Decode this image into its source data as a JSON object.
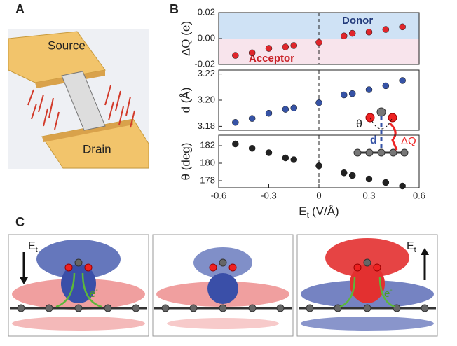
{
  "chart_data": [
    {
      "type": "scatter",
      "ylabel": "ΔQ (e)",
      "color": "#e0262b",
      "x": [
        -0.5,
        -0.4,
        -0.3,
        -0.2,
        -0.15,
        0,
        0.15,
        0.2,
        0.3,
        0.4,
        0.5
      ],
      "values": [
        -0.013,
        -0.011,
        -0.0076,
        -0.0065,
        -0.0054,
        -0.003,
        0.002,
        0.004,
        0.005,
        0.007,
        0.009
      ],
      "xlim": [
        -0.6,
        0.6
      ],
      "ylim": [
        -0.02,
        0.02
      ],
      "yticks": [
        {
          "value": -0.02,
          "label": "-0.02"
        },
        {
          "value": 0,
          "label": "0.00"
        },
        {
          "value": 0.02,
          "label": "0.02"
        }
      ],
      "annotations": [
        "Donor",
        "Acceptor"
      ]
    },
    {
      "type": "scatter",
      "ylabel": "d (Å)",
      "color": "#3653a6",
      "x": [
        -0.5,
        -0.4,
        -0.3,
        -0.2,
        -0.15,
        0,
        0.15,
        0.2,
        0.3,
        0.4,
        0.5
      ],
      "values": [
        3.183,
        3.186,
        3.19,
        3.193,
        3.194,
        3.198,
        3.204,
        3.205,
        3.208,
        3.211,
        3.215
      ],
      "xlim": [
        -0.6,
        0.6
      ],
      "ylim": [
        3.177,
        3.223
      ],
      "yticks": [
        3.18,
        {
          "value": 3.2,
          "label": "3.20"
        },
        3.22
      ],
      "annotations": [
        "θ",
        "d",
        "ΔQ"
      ]
    },
    {
      "type": "scatter",
      "ylabel": "θ (deg)",
      "color": "#222222",
      "x": [
        -0.5,
        -0.4,
        -0.3,
        -0.2,
        -0.15,
        0,
        0.15,
        0.2,
        0.3,
        0.4,
        0.5
      ],
      "values": [
        182.2,
        181.7,
        181.2,
        180.6,
        180.4,
        179.7,
        178.9,
        178.6,
        178.2,
        177.8,
        177.4
      ],
      "xlim": [
        -0.6,
        0.6
      ],
      "ylim": [
        177.2,
        183.2
      ],
      "yticks": [
        178,
        180,
        182
      ],
      "xticks": [
        -0.6,
        -0.3,
        0,
        0.3,
        0.6
      ],
      "xlabel": "E",
      "xlabel_sub": "t",
      "xlabel_unit": "(V/Å)"
    }
  ],
  "labels": {
    "panel_a": "A",
    "panel_b": "B",
    "panel_c": "C",
    "source": "Source",
    "drain": "Drain",
    "field": "E",
    "field_sub": "t",
    "electron": "e",
    "electron_sup": "-"
  }
}
